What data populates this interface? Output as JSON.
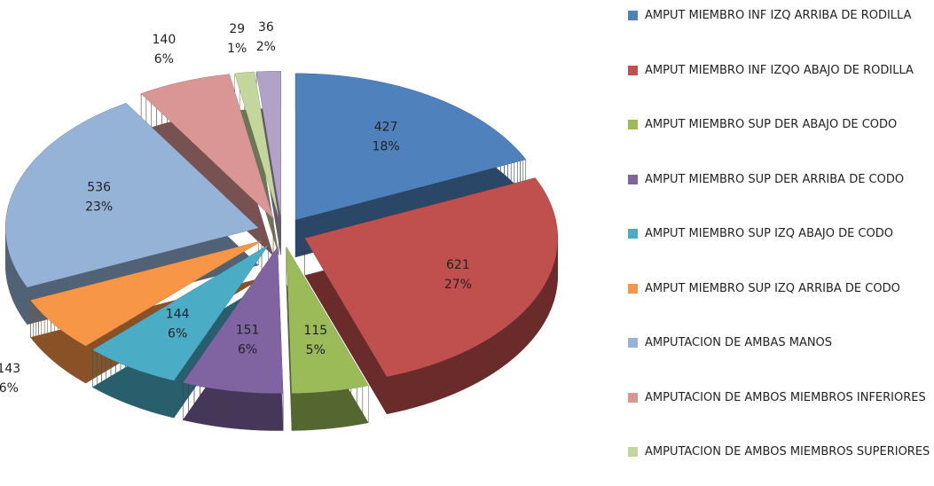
{
  "chart_data": {
    "type": "pie",
    "categories": [
      "AMPUT MIEMBRO INF IZQ ARRIBA DE RODILLA",
      "AMPUT MIEMBRO INF IZQO ABAJO DE RODILLA",
      "AMPUT MIEMBRO SUP DER ABAJO DE CODO",
      "AMPUT MIEMBRO SUP DER ARRIBA DE CODO",
      "AMPUT MIEMBRO SUP IZQ ABAJO DE CODO",
      "AMPUT MIEMBRO SUP IZQ ARRIBA DE CODO",
      "AMPUTACION DE AMBAS MANOS",
      "AMPUTACION DE AMBOS MIEMBROS INFERIORES",
      "AMPUTACION DE AMBOS MIEMBROS SUPERIORES",
      null
    ],
    "values": [
      427,
      621,
      115,
      151,
      144,
      143,
      536,
      140,
      29,
      36
    ],
    "percent_labels": [
      "18%",
      "27%",
      "5%",
      "6%",
      "6%",
      "6%",
      "23%",
      "6%",
      "1%",
      "2%"
    ],
    "colors": [
      "#4f81bd",
      "#c0504d",
      "#9bbb59",
      "#8064a2",
      "#4bacc6",
      "#f79646",
      "#95b3d7",
      "#d99694",
      "#c3d69b",
      "#b3a2c7"
    ],
    "legend": "right"
  }
}
